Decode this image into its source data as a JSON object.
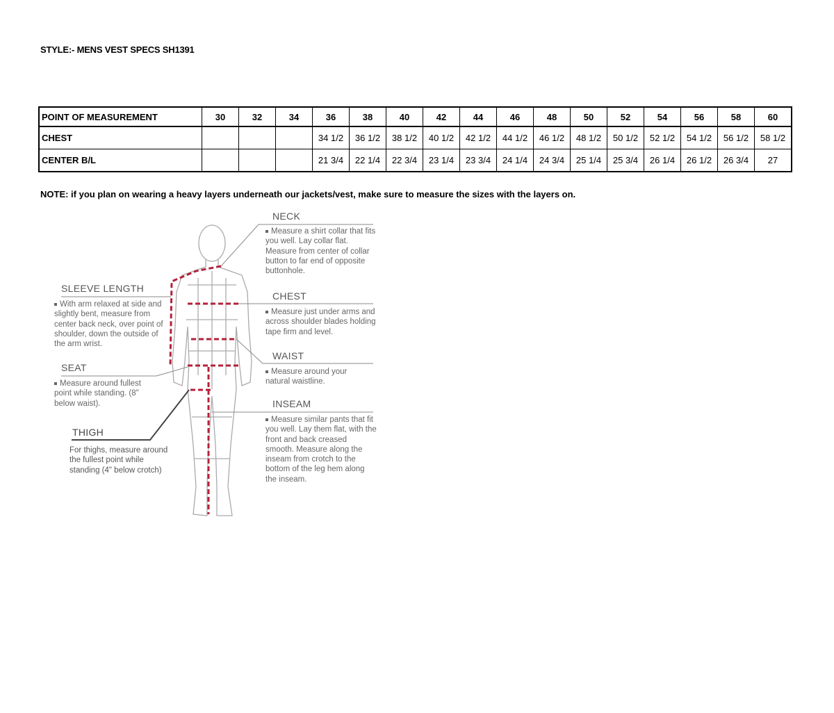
{
  "title": "STYLE:- MENS VEST SPECS  SH1391",
  "table": {
    "header": [
      "POINT OF MEASUREMENT",
      "30",
      "32",
      "34",
      "36",
      "38",
      "40",
      "42",
      "44",
      "46",
      "48",
      "50",
      "52",
      "54",
      "56",
      "58",
      "60"
    ],
    "rows": [
      [
        "CHEST",
        "",
        "",
        "",
        "34 1/2",
        "36 1/2",
        "38 1/2",
        "40 1/2",
        "42 1/2",
        "44 1/2",
        "46 1/2",
        "48 1/2",
        "50 1/2",
        "52 1/2",
        "54 1/2",
        "56 1/2",
        "58 1/2"
      ],
      [
        "CENTER B/L",
        "",
        "",
        "",
        "21 3/4",
        "22 1/4",
        "22 3/4",
        "23 1/4",
        "23 3/4",
        "24 1/4",
        "24 3/4",
        "25 1/4",
        "25 3/4",
        "26 1/4",
        "26 1/2",
        "26 3/4",
        "27"
      ]
    ]
  },
  "note": "NOTE: if you plan on wearing a heavy layers underneath our jackets/vest, make sure to measure the sizes with the layers on.",
  "figure": {
    "neck": {
      "heading": "NECK",
      "text": "Measure a shirt collar that fits you well. Lay collar flat. Measure from center of collar button to far end of opposite buttonhole."
    },
    "chest": {
      "heading": "CHEST",
      "text": "Measure just under arms and across shoulder blades holding tape firm and level."
    },
    "waist": {
      "heading": "WAIST",
      "text": "Measure around your natural waistline."
    },
    "inseam": {
      "heading": "INSEAM",
      "text": "Measure similar pants that fit you well. Lay them flat, with the front and back creased smooth. Measure along the inseam from crotch to the bottom of the leg hem along the inseam."
    },
    "sleeve": {
      "heading": "SLEEVE LENGTH",
      "text": "With arm relaxed at side and slightly bent, measure from center back neck, over point of shoulder, down the outside of the arm wrist."
    },
    "seat": {
      "heading": "SEAT",
      "text": "Measure around fullest point while standing. (8\" below waist)."
    },
    "thigh": {
      "heading": "THIGH",
      "text": "For thighs, measure around the fullest point while standing (4\" below crotch)"
    },
    "colors": {
      "measure_line": "#b5203a",
      "body_outline": "#aaaaaa",
      "text": "#666666"
    }
  }
}
